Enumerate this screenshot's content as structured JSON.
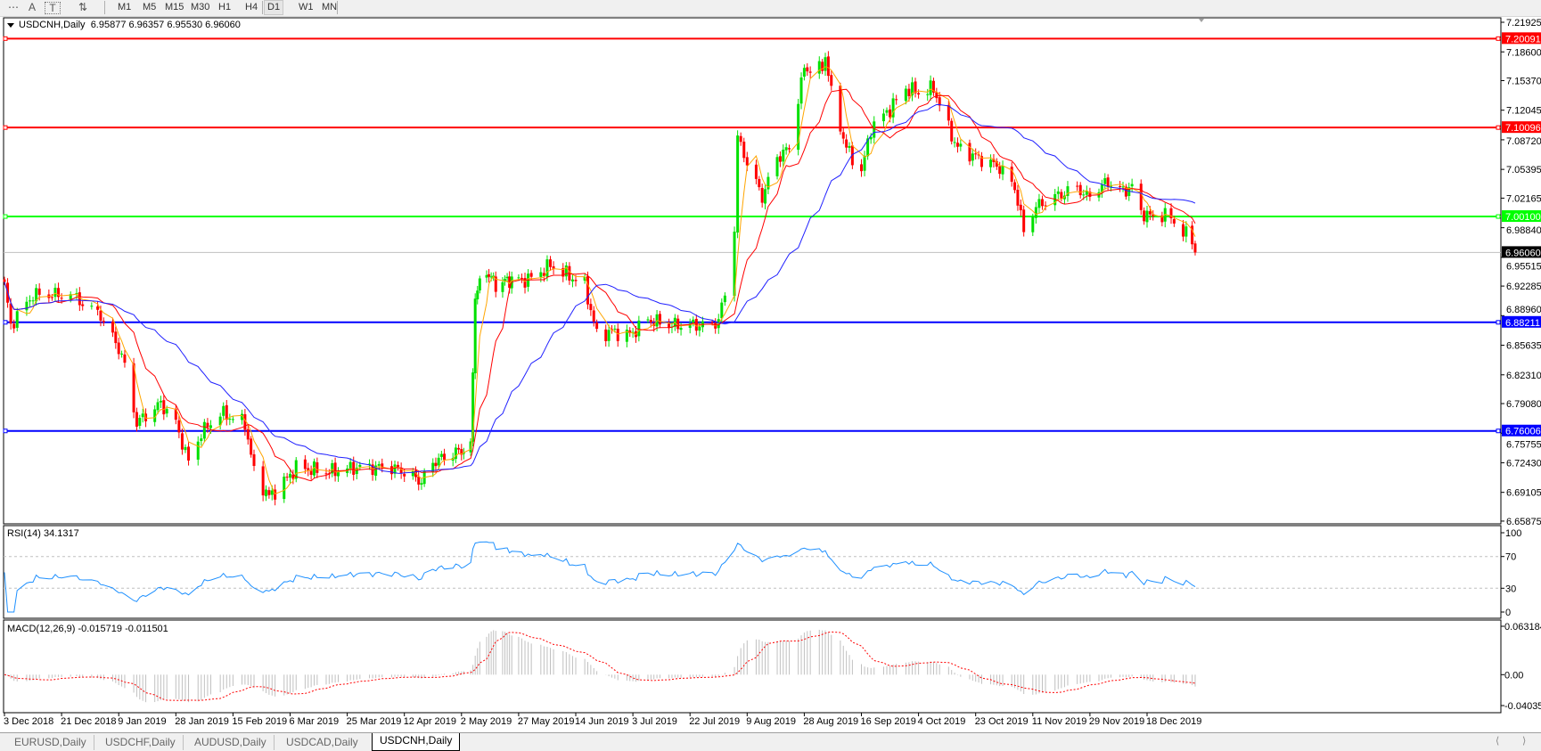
{
  "toolbar": {
    "icons": [
      "period-separator-icon",
      "text-icon",
      "text-label-icon",
      "arrows-icon"
    ],
    "icon_glyphs": [
      "⋯",
      "A",
      "T",
      "⇅"
    ],
    "timeframes": [
      "M1",
      "M5",
      "M15",
      "M30",
      "H1",
      "H4",
      "D1",
      "W1",
      "MN"
    ],
    "active_timeframe": "D1"
  },
  "chart": {
    "symbol": "USDCNH,Daily",
    "ohlc": "6.95877 6.96357 6.95530 6.96060"
  },
  "price_axis": [
    "7.21925",
    "7.18600",
    "7.15370",
    "7.12045",
    "7.08720",
    "7.05395",
    "7.02165",
    "6.98840",
    "6.95515",
    "6.92285",
    "6.88960",
    "6.85635",
    "6.82310",
    "6.79080",
    "6.75755",
    "6.72430",
    "6.69105",
    "6.65875"
  ],
  "horizontal_lines": [
    {
      "price": "7.20091",
      "color": "#ff0000"
    },
    {
      "price": "7.10096",
      "color": "#ff0000"
    },
    {
      "price": "7.00100",
      "color": "#00ff00"
    },
    {
      "price": "6.88211",
      "color": "#0000ff"
    },
    {
      "price": "6.76006",
      "color": "#0000ff"
    }
  ],
  "current_price": "6.96060",
  "colors": {
    "bull": "#00e000",
    "bear": "#ff0000",
    "ma_fast": "#ffa500",
    "ma_mid": "#ff0000",
    "ma_slow": "#2020ff",
    "rsi": "#1e90ff",
    "macd_hist": "#c0c0c0",
    "macd_signal": "#ff0000"
  },
  "rsi": {
    "label": "RSI(14) 34.1317",
    "levels": [
      "100",
      "70",
      "30",
      "0"
    ]
  },
  "macd": {
    "label": "MACD(12,26,9) -0.015719 -0.011501",
    "axis": [
      "0.063184",
      "0.00",
      "-0.040355"
    ]
  },
  "chart_data": {
    "type": "candlestick",
    "symbol": "USDCNH",
    "timeframe": "Daily",
    "ylim": [
      6.65875,
      7.21925
    ],
    "x_tick_labels": [
      "3 Dec 2018",
      "21 Dec 2018",
      "9 Jan 2019",
      "28 Jan 2019",
      "15 Feb 2019",
      "6 Mar 2019",
      "25 Mar 2019",
      "12 Apr 2019",
      "2 May 2019",
      "27 May 2019",
      "14 Jun 2019",
      "3 Jul 2019",
      "22 Jul 2019",
      "9 Aug 2019",
      "28 Aug 2019",
      "16 Sep 2019",
      "4 Oct 2019",
      "23 Oct 2019",
      "11 Nov 2019",
      "29 Nov 2019",
      "18 Dec 2019"
    ],
    "close_points": [
      [
        "2018-12-03",
        6.924
      ],
      [
        "2018-12-05",
        6.879
      ],
      [
        "2018-12-12",
        6.913
      ],
      [
        "2018-12-24",
        6.913
      ],
      [
        "2019-01-03",
        6.89
      ],
      [
        "2019-01-10",
        6.846
      ],
      [
        "2019-01-15",
        6.769
      ],
      [
        "2019-01-23",
        6.791
      ],
      [
        "2019-01-28",
        6.769
      ],
      [
        "2019-02-01",
        6.725
      ],
      [
        "2019-02-05",
        6.758
      ],
      [
        "2019-02-11",
        6.78
      ],
      [
        "2019-02-19",
        6.769
      ],
      [
        "2019-02-22",
        6.714
      ],
      [
        "2019-02-27",
        6.686
      ],
      [
        "2019-03-04",
        6.703
      ],
      [
        "2019-03-08",
        6.719
      ],
      [
        "2019-03-19",
        6.714
      ],
      [
        "2019-03-28",
        6.719
      ],
      [
        "2019-04-08",
        6.719
      ],
      [
        "2019-04-12",
        6.714
      ],
      [
        "2019-04-18",
        6.703
      ],
      [
        "2019-04-22",
        6.725
      ],
      [
        "2019-04-30",
        6.736
      ],
      [
        "2019-05-06",
        6.741
      ],
      [
        "2019-05-08",
        6.913
      ],
      [
        "2019-05-13",
        6.94
      ],
      [
        "2019-05-17",
        6.924
      ],
      [
        "2019-05-23",
        6.93
      ],
      [
        "2019-05-30",
        6.93
      ],
      [
        "2019-06-06",
        6.946
      ],
      [
        "2019-06-17",
        6.924
      ],
      [
        "2019-06-21",
        6.868
      ],
      [
        "2019-06-26",
        6.872
      ],
      [
        "2019-07-02",
        6.868
      ],
      [
        "2019-07-08",
        6.885
      ],
      [
        "2019-07-15",
        6.879
      ],
      [
        "2019-07-19",
        6.879
      ],
      [
        "2019-07-29",
        6.879
      ],
      [
        "2019-07-31",
        6.885
      ],
      [
        "2019-08-02",
        6.913
      ],
      [
        "2019-08-05",
        6.99
      ],
      [
        "2019-08-06",
        7.089
      ],
      [
        "2019-08-09",
        7.062
      ],
      [
        "2019-08-14",
        7.023
      ],
      [
        "2019-08-19",
        7.067
      ],
      [
        "2019-08-23",
        7.078
      ],
      [
        "2019-08-26",
        7.134
      ],
      [
        "2019-08-28",
        7.167
      ],
      [
        "2019-09-03",
        7.167
      ],
      [
        "2019-09-04",
        7.183
      ],
      [
        "2019-09-06",
        7.139
      ],
      [
        "2019-09-11",
        7.078
      ],
      [
        "2019-09-16",
        7.051
      ],
      [
        "2019-09-19",
        7.1
      ],
      [
        "2019-09-25",
        7.122
      ],
      [
        "2019-09-30",
        7.145
      ],
      [
        "2019-10-04",
        7.14
      ],
      [
        "2019-10-09",
        7.145
      ],
      [
        "2019-10-14",
        7.1
      ],
      [
        "2019-10-17",
        7.078
      ],
      [
        "2019-10-24",
        7.067
      ],
      [
        "2019-10-31",
        7.056
      ],
      [
        "2019-11-05",
        7.034
      ],
      [
        "2019-11-08",
        6.984
      ],
      [
        "2019-11-12",
        7.012
      ],
      [
        "2019-11-18",
        7.023
      ],
      [
        "2019-11-25",
        7.034
      ],
      [
        "2019-11-28",
        7.023
      ],
      [
        "2019-12-05",
        7.04
      ],
      [
        "2019-12-10",
        7.03
      ],
      [
        "2019-12-13",
        7.034
      ],
      [
        "2019-12-16",
        7.006
      ],
      [
        "2019-12-19",
        7.001
      ],
      [
        "2019-12-25",
        7.003
      ],
      [
        "2019-12-27",
        6.995
      ],
      [
        "2020-01-02",
        6.973
      ],
      [
        "2020-01-03",
        6.9606
      ]
    ]
  },
  "tabs": [
    "EURUSD,Daily",
    "USDCHF,Daily",
    "AUDUSD,Daily",
    "USDCAD,Daily",
    "USDCNH,Daily"
  ],
  "active_tab": "USDCNH,Daily",
  "scroll_glyphs": [
    "⟨",
    "⟩"
  ]
}
